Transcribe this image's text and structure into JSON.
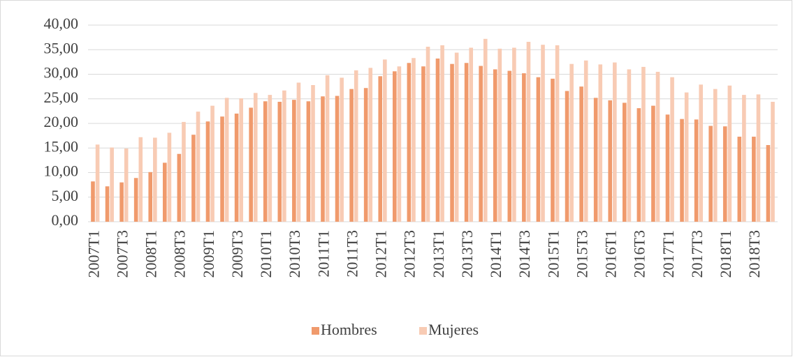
{
  "chart_data": {
    "type": "bar",
    "categories": [
      "2007T1",
      null,
      "2007T3",
      null,
      "2008T1",
      null,
      "2008T3",
      null,
      "2009T1",
      null,
      "2009T3",
      null,
      "2010T1",
      null,
      "2010T3",
      null,
      "2011T1",
      null,
      "2011T3",
      null,
      "2012T1",
      null,
      "2012T3",
      null,
      "2013T1",
      null,
      "2013T3",
      null,
      "2014T1",
      null,
      "2014T3",
      null,
      "2015T1",
      null,
      "2015T3",
      null,
      "2016T1",
      null,
      "2016T3",
      null,
      "2017T1",
      null,
      "2017T3",
      null,
      "2018T1",
      null,
      "2018T3",
      null
    ],
    "series": [
      {
        "name": "Hombres",
        "color": "#f09a6c",
        "values": [
          8.2,
          7.2,
          8.0,
          8.9,
          10.1,
          12.0,
          13.8,
          17.7,
          20.4,
          21.4,
          22.0,
          23.2,
          24.5,
          24.4,
          24.8,
          24.5,
          25.5,
          25.6,
          27.0,
          27.2,
          29.6,
          30.6,
          32.3,
          31.6,
          33.2,
          32.1,
          32.3,
          31.7,
          31.0,
          30.7,
          30.2,
          29.4,
          29.1,
          26.6,
          27.5,
          25.2,
          24.7,
          24.2,
          23.1,
          23.6,
          21.8,
          20.9,
          20.8,
          19.5,
          19.4,
          17.3,
          17.3,
          15.6
        ]
      },
      {
        "name": "Mujeres",
        "color": "#f8cbb4",
        "values": [
          15.7,
          15.1,
          14.9,
          17.2,
          17.1,
          18.1,
          20.3,
          22.4,
          23.6,
          25.2,
          25.1,
          26.2,
          25.8,
          26.7,
          28.3,
          27.8,
          29.8,
          29.3,
          30.8,
          31.3,
          33.0,
          31.6,
          33.3,
          35.6,
          35.9,
          34.4,
          35.4,
          37.2,
          35.2,
          35.4,
          36.6,
          36.0,
          35.9,
          32.1,
          32.8,
          32.0,
          32.4,
          31.0,
          31.5,
          30.5,
          29.4,
          26.3,
          27.9,
          27.0,
          27.7,
          25.8,
          25.9,
          24.4
        ]
      }
    ],
    "ylim": [
      0,
      40
    ],
    "yticks": [
      {
        "value": 0,
        "label": "0,00"
      },
      {
        "value": 5,
        "label": "5,00"
      },
      {
        "value": 10,
        "label": "10,00"
      },
      {
        "value": 15,
        "label": "15,00"
      },
      {
        "value": 20,
        "label": "20,00"
      },
      {
        "value": 25,
        "label": "25,00"
      },
      {
        "value": 30,
        "label": "30,00"
      },
      {
        "value": 35,
        "label": "35,00"
      },
      {
        "value": 40,
        "label": "40,00"
      }
    ],
    "grid": true,
    "legend": "bottom"
  }
}
